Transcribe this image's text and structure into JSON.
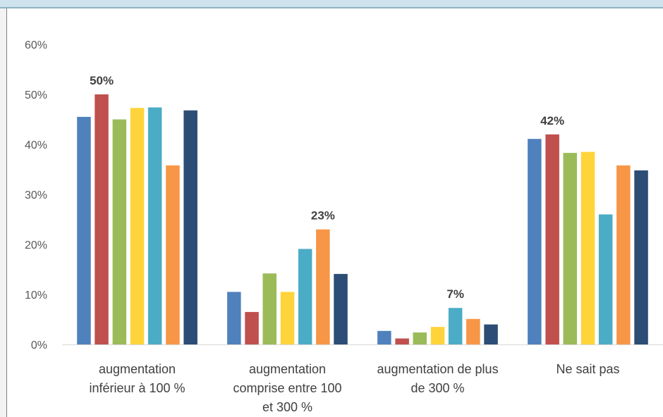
{
  "chart_data": {
    "type": "bar",
    "title": "",
    "xlabel": "",
    "ylabel": "",
    "ylim": [
      0,
      0.6
    ],
    "yticks": [
      "0%",
      "10%",
      "20%",
      "30%",
      "40%",
      "50%",
      "60%"
    ],
    "grid": false,
    "legend": "none",
    "categories": [
      [
        "augmentation",
        "inférieur à 100 %"
      ],
      [
        "augmentation",
        "comprise entre 100",
        "et 300 %"
      ],
      [
        "augmentation de plus",
        "de 300 %"
      ],
      [
        "Ne sait pas"
      ]
    ],
    "series": [
      {
        "color": "#4f81bd",
        "values": [
          0.455,
          0.105,
          0.027,
          0.411
        ]
      },
      {
        "color": "#c0504d",
        "values": [
          0.5,
          0.065,
          0.012,
          0.42
        ]
      },
      {
        "color": "#9bbb59",
        "values": [
          0.45,
          0.142,
          0.024,
          0.383
        ]
      },
      {
        "color": "#ffd43b",
        "values": [
          0.473,
          0.105,
          0.035,
          0.385
        ]
      },
      {
        "color": "#4bacc6",
        "values": [
          0.474,
          0.191,
          0.073,
          0.26
        ]
      },
      {
        "color": "#f79646",
        "values": [
          0.358,
          0.23,
          0.051,
          0.358
        ]
      },
      {
        "color": "#2c4d75",
        "values": [
          0.468,
          0.141,
          0.04,
          0.348
        ]
      }
    ],
    "data_labels": [
      {
        "category": 0,
        "series": 1,
        "text": "50%"
      },
      {
        "category": 1,
        "series": 5,
        "text": "23%"
      },
      {
        "category": 2,
        "series": 4,
        "text": "7%"
      },
      {
        "category": 3,
        "series": 1,
        "text": "42%"
      }
    ]
  }
}
